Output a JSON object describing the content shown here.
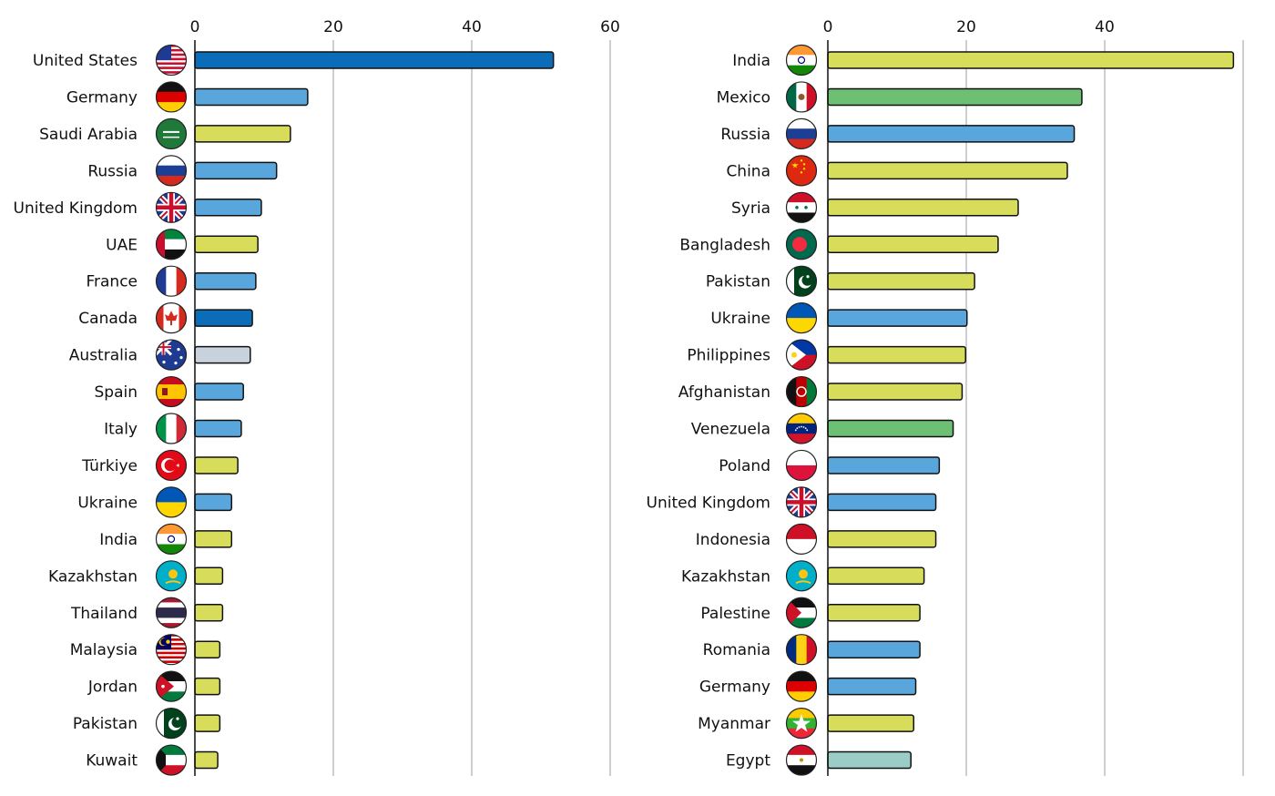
{
  "colors": {
    "blue_dark": "#0b6db8",
    "blue": "#58a6dc",
    "yellow": "#d7dc5b",
    "green": "#6cbf73",
    "gray": "#c7d2dc",
    "teal": "#99cdc5"
  },
  "chart_data": [
    {
      "type": "bar",
      "orientation": "horizontal",
      "title": "",
      "xlabel": "",
      "ylabel": "",
      "xlim": [
        0,
        60
      ],
      "xticks": [
        0,
        20,
        40,
        60
      ],
      "grid": true,
      "categories": [
        "United States",
        "Germany",
        "Saudi Arabia",
        "Russia",
        "United Kingdom",
        "UAE",
        "France",
        "Canada",
        "Australia",
        "Spain",
        "Italy",
        "Türkiye",
        "Ukraine",
        "India",
        "Kazakhstan",
        "Thailand",
        "Malaysia",
        "Jordan",
        "Pakistan",
        "Kuwait"
      ],
      "values": [
        51.8,
        16.3,
        13.8,
        11.8,
        9.6,
        9.1,
        8.8,
        8.3,
        8.0,
        7.0,
        6.7,
        6.2,
        5.3,
        5.3,
        4.0,
        4.0,
        3.6,
        3.6,
        3.6,
        3.3
      ],
      "bar_colors": [
        "blue_dark",
        "blue",
        "yellow",
        "blue",
        "blue",
        "yellow",
        "blue",
        "blue_dark",
        "gray",
        "blue",
        "blue",
        "yellow",
        "blue",
        "yellow",
        "yellow",
        "yellow",
        "yellow",
        "yellow",
        "yellow",
        "yellow"
      ],
      "flags": [
        "us-flag",
        "germany-flag",
        "saudi-arabia-flag",
        "russia-flag",
        "uk-flag",
        "uae-flag",
        "france-flag",
        "canada-flag",
        "australia-flag",
        "spain-flag",
        "italy-flag",
        "turkiye-flag",
        "ukraine-flag",
        "india-flag",
        "kazakhstan-flag",
        "thailand-flag",
        "malaysia-flag",
        "jordan-flag",
        "pakistan-flag",
        "kuwait-flag"
      ]
    },
    {
      "type": "bar",
      "orientation": "horizontal",
      "title": "",
      "xlabel": "",
      "ylabel": "",
      "xlim": [
        0,
        60
      ],
      "xticks": [
        0,
        20,
        40
      ],
      "grid": true,
      "categories": [
        "India",
        "Mexico",
        "Russia",
        "China",
        "Syria",
        "Bangladesh",
        "Pakistan",
        "Ukraine",
        "Philippines",
        "Afghanistan",
        "Venezuela",
        "Poland",
        "United Kingdom",
        "Indonesia",
        "Kazakhstan",
        "Palestine",
        "Romania",
        "Germany",
        "Myanmar",
        "Egypt"
      ],
      "values": [
        58.6,
        36.7,
        35.6,
        34.6,
        27.5,
        24.6,
        21.2,
        20.1,
        19.9,
        19.4,
        18.1,
        16.1,
        15.6,
        15.6,
        13.9,
        13.3,
        13.3,
        12.7,
        12.4,
        12.0
      ],
      "bar_colors": [
        "yellow",
        "green",
        "blue",
        "yellow",
        "yellow",
        "yellow",
        "yellow",
        "blue",
        "yellow",
        "yellow",
        "green",
        "blue",
        "blue",
        "yellow",
        "yellow",
        "yellow",
        "blue",
        "blue",
        "yellow",
        "teal"
      ],
      "flags": [
        "india-flag",
        "mexico-flag",
        "russia-flag",
        "china-flag",
        "syria-flag",
        "bangladesh-flag",
        "pakistan-flag",
        "ukraine-flag",
        "philippines-flag",
        "afghanistan-flag",
        "venezuela-flag",
        "poland-flag",
        "uk-flag",
        "indonesia-flag",
        "kazakhstan-flag",
        "palestine-flag",
        "romania-flag",
        "germany-flag",
        "myanmar-flag",
        "egypt-flag"
      ]
    }
  ]
}
